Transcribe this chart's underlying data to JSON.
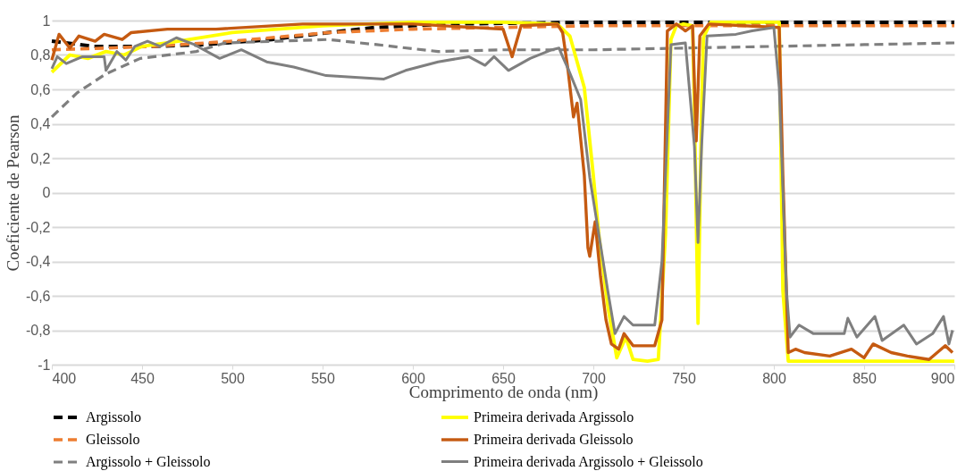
{
  "chart_data": {
    "type": "line",
    "xlabel": "Comprimento de onda (nm)",
    "ylabel": "Coeficiente de Pearson",
    "xlim": [
      400,
      900
    ],
    "xticks": [
      400,
      450,
      500,
      550,
      600,
      650,
      700,
      750,
      800,
      850,
      900
    ],
    "ylim": [
      -1,
      1
    ],
    "yticks": [
      {
        "value": -1,
        "label": "-1"
      },
      {
        "value": -0.8,
        "label": "-0,8"
      },
      {
        "value": -0.6,
        "label": "-0,6"
      },
      {
        "value": -0.4,
        "label": "-0,4"
      },
      {
        "value": -0.2,
        "label": "-0,2"
      },
      {
        "value": 0,
        "label": "0"
      },
      {
        "value": 0.2,
        "label": "0,2"
      },
      {
        "value": 0.4,
        "label": "0,4"
      },
      {
        "value": 0.6,
        "label": "0,6"
      },
      {
        "value": 0.8,
        "label": "0,8"
      },
      {
        "value": 1,
        "label": "1"
      }
    ],
    "grid": "y",
    "legend": "bottom",
    "marker": "none",
    "series": [
      {
        "name": "Argissolo",
        "color": "#000000",
        "line_style": "dashed",
        "x": [
          400,
          423,
          456,
          484,
          522,
          553,
          579,
          620,
          657,
          700,
          750,
          800,
          850,
          900
        ],
        "values": [
          0.88,
          0.85,
          0.85,
          0.86,
          0.89,
          0.93,
          0.96,
          0.98,
          0.985,
          0.99,
          0.99,
          0.99,
          0.99,
          0.99
        ]
      },
      {
        "name": "Gleissolo",
        "color": "#ed7d31",
        "line_style": "dashed",
        "x": [
          400,
          430,
          456,
          500,
          553,
          600,
          650,
          700,
          750,
          800,
          850,
          900
        ],
        "values": [
          0.83,
          0.84,
          0.85,
          0.88,
          0.93,
          0.95,
          0.96,
          0.97,
          0.97,
          0.97,
          0.97,
          0.97
        ]
      },
      {
        "name": "Argissolo + Gleissolo",
        "color": "#7f7f7f",
        "line_style": "dashed",
        "x": [
          400,
          414,
          430,
          449,
          480,
          496,
          525,
          553,
          580,
          614,
          650,
          700,
          750,
          800,
          850,
          900
        ],
        "values": [
          0.44,
          0.58,
          0.69,
          0.78,
          0.82,
          0.87,
          0.88,
          0.89,
          0.86,
          0.82,
          0.83,
          0.83,
          0.84,
          0.85,
          0.86,
          0.87
        ]
      },
      {
        "name": "Primeira derivada Argissolo",
        "color": "#ffff00",
        "line_style": "solid",
        "x": [
          400,
          410,
          420,
          430,
          440,
          450,
          470,
          500,
          550,
          600,
          650,
          680,
          687,
          695,
          700,
          703,
          708,
          713,
          718,
          722,
          730,
          736,
          740,
          743,
          746,
          750,
          755,
          756,
          758,
          760,
          761,
          765,
          780,
          803,
          805,
          808,
          830,
          860,
          900
        ],
        "values": [
          0.7,
          0.8,
          0.78,
          0.82,
          0.8,
          0.85,
          0.88,
          0.93,
          0.97,
          0.99,
          0.99,
          0.98,
          0.91,
          0.61,
          0.1,
          -0.24,
          -0.66,
          -0.96,
          -0.84,
          -0.97,
          -0.98,
          -0.97,
          -0.24,
          0.89,
          0.97,
          0.98,
          0.97,
          0.5,
          -0.76,
          0.5,
          0.9,
          0.99,
          0.99,
          0.99,
          -0.57,
          -0.98,
          -0.98,
          -0.98,
          -0.98
        ]
      },
      {
        "name": "Primeira derivada Gleissolo",
        "color": "#c55a11",
        "line_style": "solid",
        "x": [
          400,
          404,
          410,
          415,
          424,
          429,
          439,
          444,
          464,
          491,
          539,
          600,
          650,
          655,
          660,
          680,
          683,
          686,
          689,
          691,
          695,
          697,
          698,
          701,
          704,
          707,
          710,
          714,
          717,
          722,
          734,
          738,
          741,
          746,
          751,
          755,
          757,
          759,
          764,
          803,
          805,
          808,
          812,
          817,
          831,
          843,
          850,
          855,
          865,
          874,
          886,
          895,
          899
        ],
        "values": [
          0.77,
          0.92,
          0.84,
          0.91,
          0.88,
          0.92,
          0.89,
          0.93,
          0.95,
          0.95,
          0.98,
          0.98,
          0.95,
          0.79,
          0.97,
          0.98,
          0.93,
          0.71,
          0.44,
          0.52,
          0.1,
          -0.32,
          -0.37,
          -0.17,
          -0.49,
          -0.74,
          -0.88,
          -0.91,
          -0.82,
          -0.89,
          -0.89,
          -0.74,
          0.94,
          0.98,
          0.94,
          0.97,
          0.3,
          0.91,
          0.98,
          0.96,
          0.1,
          -0.93,
          -0.91,
          -0.93,
          -0.95,
          -0.91,
          -0.96,
          -0.88,
          -0.93,
          -0.95,
          -0.97,
          -0.89,
          -0.93
        ]
      },
      {
        "name": "Primeira derivada Argissolo + Gleissolo",
        "color": "#7f7f7f",
        "line_style": "solid",
        "x": [
          400,
          403,
          408,
          417,
          429,
          430,
          436,
          441,
          446,
          453,
          460,
          469,
          479,
          493,
          505,
          519,
          534,
          552,
          584,
          596,
          614,
          631,
          640,
          645,
          653,
          665,
          677,
          681,
          683,
          686,
          693,
          698,
          703,
          708,
          712,
          717,
          722,
          734,
          738,
          743,
          751,
          756,
          758,
          760,
          763,
          779,
          788,
          800,
          803,
          807,
          809,
          814,
          822,
          839,
          841,
          846,
          856,
          860,
          872,
          879,
          888,
          894,
          897,
          899
        ],
        "values": [
          0.72,
          0.79,
          0.75,
          0.79,
          0.79,
          0.71,
          0.82,
          0.77,
          0.85,
          0.88,
          0.85,
          0.9,
          0.86,
          0.78,
          0.83,
          0.76,
          0.73,
          0.68,
          0.66,
          0.71,
          0.76,
          0.79,
          0.74,
          0.79,
          0.71,
          0.78,
          0.83,
          0.84,
          0.79,
          0.72,
          0.54,
          0.09,
          -0.24,
          -0.57,
          -0.82,
          -0.72,
          -0.77,
          -0.77,
          -0.4,
          0.86,
          0.87,
          0.27,
          -0.29,
          0.27,
          0.91,
          0.92,
          0.94,
          0.96,
          0.61,
          -0.57,
          -0.84,
          -0.77,
          -0.82,
          -0.82,
          -0.73,
          -0.84,
          -0.72,
          -0.86,
          -0.77,
          -0.88,
          -0.82,
          -0.72,
          -0.88,
          -0.8
        ]
      }
    ]
  }
}
